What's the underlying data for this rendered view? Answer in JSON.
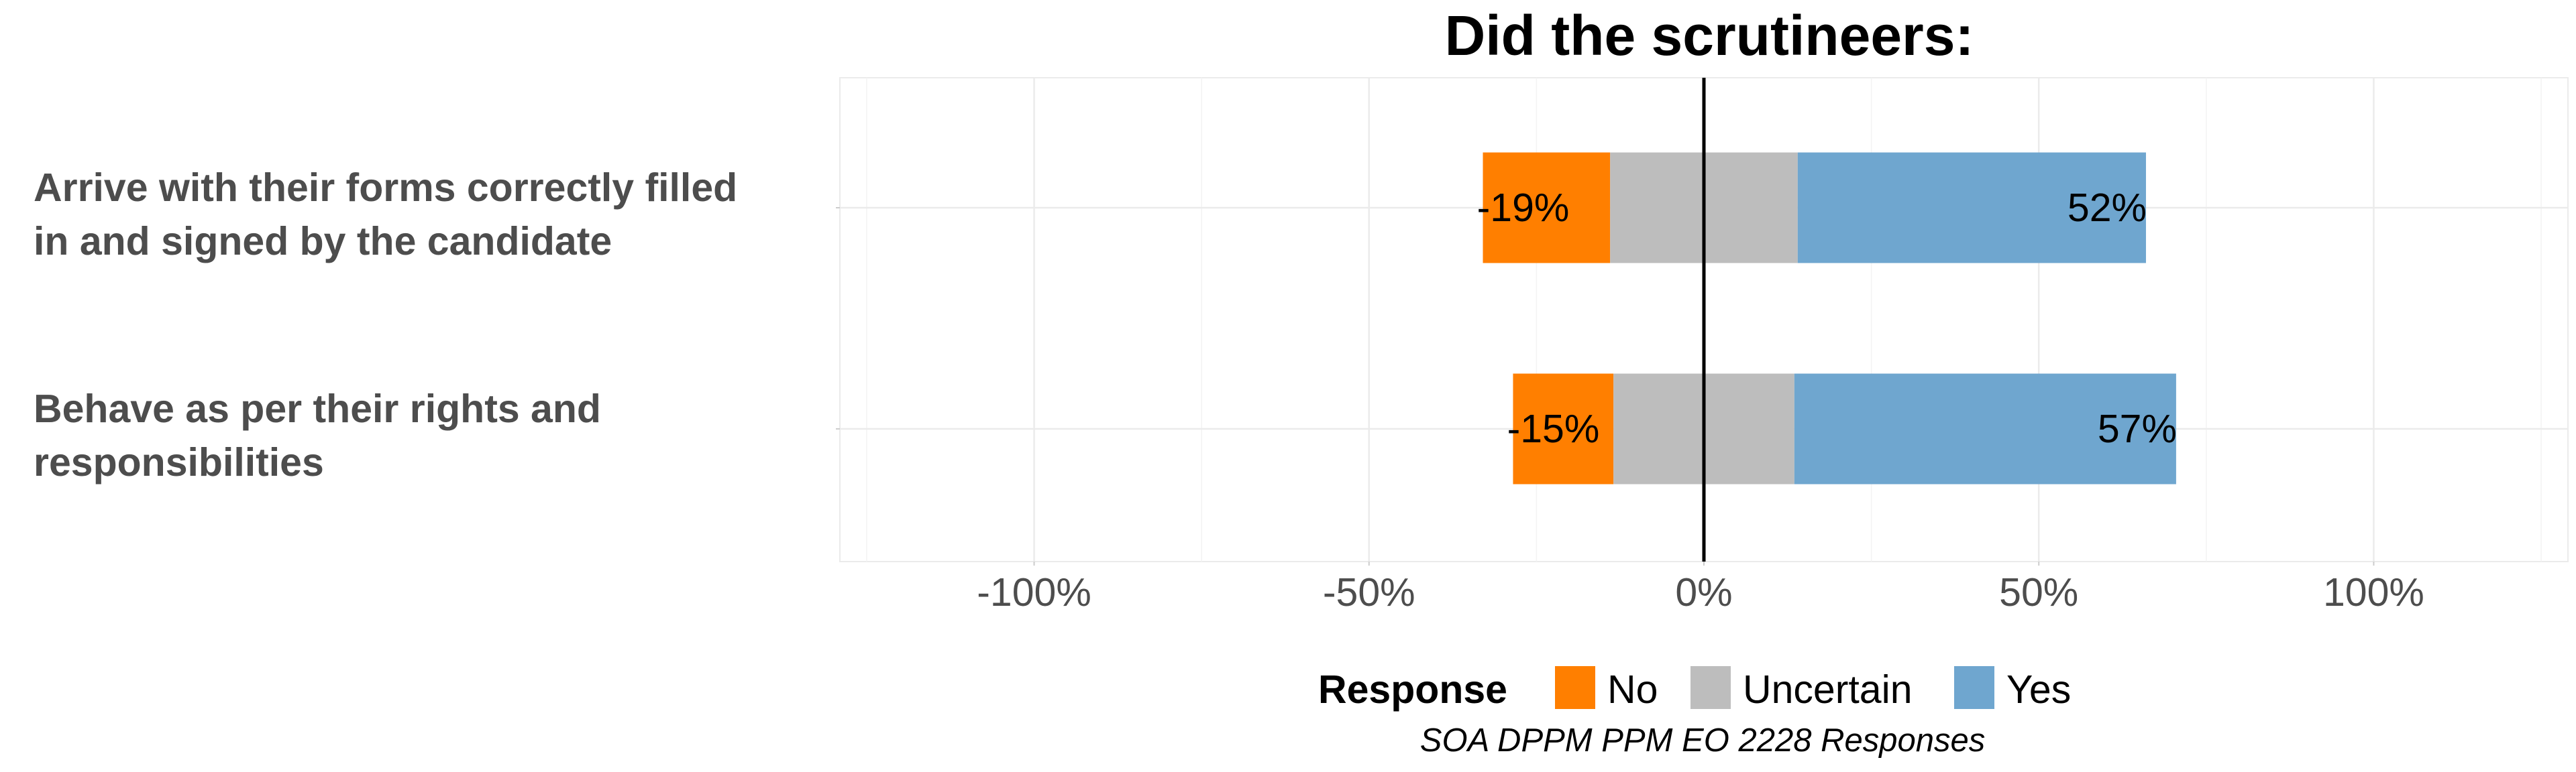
{
  "chart_data": {
    "type": "bar",
    "orientation": "horizontal",
    "stacked": "diverging",
    "title": "Did the scrutineers:",
    "categories": [
      [
        "Arrive with their forms correctly filled",
        "in and signed by the candidate"
      ],
      [
        "Behave as per their rights and",
        "responsibilities"
      ]
    ],
    "series": [
      {
        "name": "No",
        "color": "#ff7f00",
        "values": [
          -19,
          -15
        ]
      },
      {
        "name": "Uncertain",
        "color": "#bdbdbd",
        "values": [
          28,
          27
        ]
      },
      {
        "name": "Yes",
        "color": "#6fa6cf",
        "values": [
          52,
          57
        ]
      }
    ],
    "data_labels": [
      {
        "category_index": 0,
        "series": "No",
        "text": "-19%"
      },
      {
        "category_index": 0,
        "series": "Yes",
        "text": "52%"
      },
      {
        "category_index": 1,
        "series": "No",
        "text": "-15%"
      },
      {
        "category_index": 1,
        "series": "Yes",
        "text": "57%"
      }
    ],
    "xlim": [
      -129,
      129
    ],
    "x_ticks": [
      -100,
      -50,
      0,
      50,
      100
    ],
    "x_tick_labels": [
      "-100%",
      "-50%",
      "0%",
      "50%",
      "100%"
    ],
    "grid": true,
    "legend": {
      "title": "Response",
      "position": "bottom",
      "items": [
        "No",
        "Uncertain",
        "Yes"
      ]
    },
    "caption": "SOA DPPM PPM EO 2228 Responses"
  }
}
